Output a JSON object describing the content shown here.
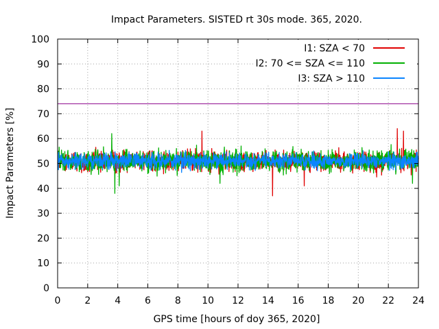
{
  "chart_data": {
    "type": "line",
    "title": "Impact Parameters. SISTED rt 30s mode. 365, 2020.",
    "xlabel": "GPS time [hours of doy 365, 2020]",
    "ylabel": "Impact Parameters [%]",
    "xlim": [
      0,
      24
    ],
    "ylim": [
      0,
      100
    ],
    "xticks": [
      "0",
      "2",
      "4",
      "6",
      "8",
      "10",
      "12",
      "14",
      "16",
      "18",
      "20",
      "22",
      "24"
    ],
    "yticks": [
      "0",
      "10",
      "20",
      "30",
      "40",
      "50",
      "60",
      "70",
      "80",
      "90",
      "100"
    ],
    "grid": true,
    "legend_position": "top-right",
    "reference_line": {
      "value": 74,
      "color": "#8b008b"
    },
    "series": [
      {
        "name": "I1: SZA < 70",
        "color": "#e00000",
        "mean": 51,
        "typical_range": [
          45,
          58
        ],
        "extremes": [
          {
            "x": 9.6,
            "y": 63
          },
          {
            "x": 14.3,
            "y": 37
          },
          {
            "x": 22.6,
            "y": 64
          },
          {
            "x": 23.0,
            "y": 63
          },
          {
            "x": 16.4,
            "y": 41
          }
        ]
      },
      {
        "name": "I2: 70 <= SZA <= 110",
        "color": "#00b000",
        "mean": 51,
        "typical_range": [
          44,
          58
        ],
        "extremes": [
          {
            "x": 3.6,
            "y": 62
          },
          {
            "x": 3.8,
            "y": 38
          },
          {
            "x": 4.1,
            "y": 41
          },
          {
            "x": 10.8,
            "y": 42
          },
          {
            "x": 23.6,
            "y": 42
          }
        ]
      },
      {
        "name": "I3: SZA > 110",
        "color": "#0a84ff",
        "mean": 51,
        "typical_range": [
          46,
          56
        ],
        "extremes": []
      }
    ]
  }
}
